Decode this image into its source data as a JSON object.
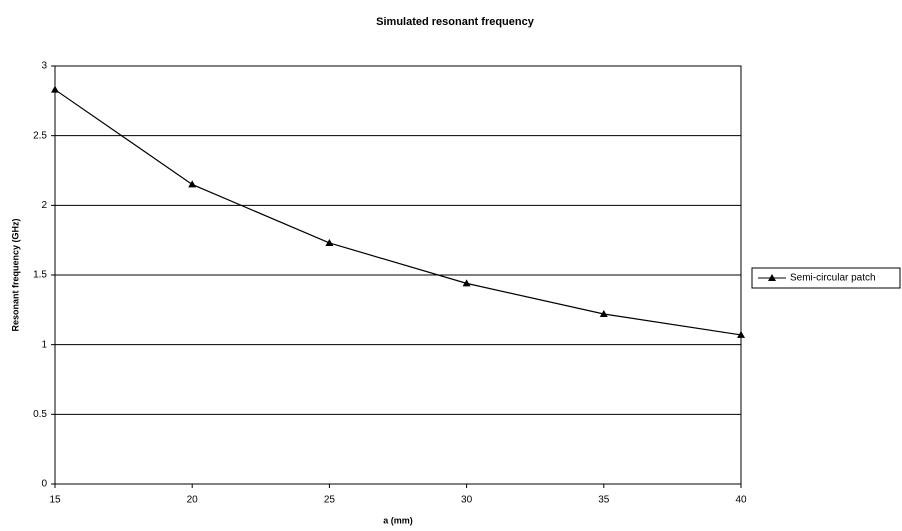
{
  "chart_data": {
    "type": "line",
    "title": "Simulated resonant frequency",
    "x_label": "a (mm)",
    "y_label": "Resonant frequency (GHz)",
    "x": [
      15,
      20,
      25,
      30,
      35,
      40
    ],
    "series": [
      {
        "name": "Semi-circular patch",
        "color": "#000000",
        "values": [
          2.83,
          2.15,
          1.73,
          1.44,
          1.22,
          1.07
        ]
      }
    ],
    "xlim": [
      15,
      40
    ],
    "xticks": [
      15,
      20,
      25,
      30,
      35,
      40
    ],
    "ylim": [
      0,
      3
    ],
    "yticks": [
      0,
      0.5,
      1,
      1.5,
      2,
      2.5,
      3
    ],
    "grid": true,
    "legend": "right"
  }
}
